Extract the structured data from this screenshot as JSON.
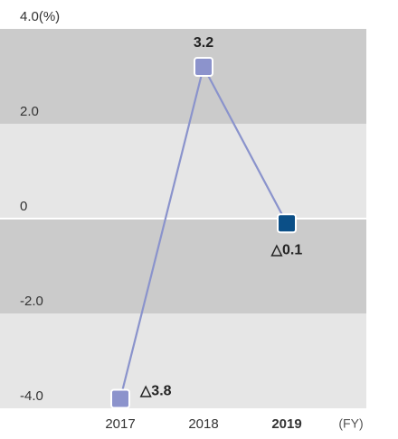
{
  "chart_data": {
    "type": "line",
    "categories": [
      "2017",
      "2018",
      "2019"
    ],
    "x_label": "(FY)",
    "series": [
      {
        "color": "#8a93cc",
        "values": [
          -3.8,
          3.2,
          -0.1
        ],
        "value_labels": [
          "△3.8",
          "3.2",
          "△0.1"
        ],
        "marker_colors": [
          "#8c93cc",
          "#8c93cc",
          "#0b4f87"
        ]
      }
    ],
    "ylim": [
      -4,
      4
    ],
    "yticks": [
      {
        "value": -4,
        "label": "-4.0"
      },
      {
        "value": -2,
        "label": "-2.0"
      },
      0,
      {
        "value": 2,
        "label": "2.0"
      },
      {
        "value": 4,
        "label": "4.0(%)"
      }
    ],
    "band_colors": [
      "#e6e6e6",
      "#cbcbcb"
    ],
    "zero_line_color": "#ffffff"
  }
}
